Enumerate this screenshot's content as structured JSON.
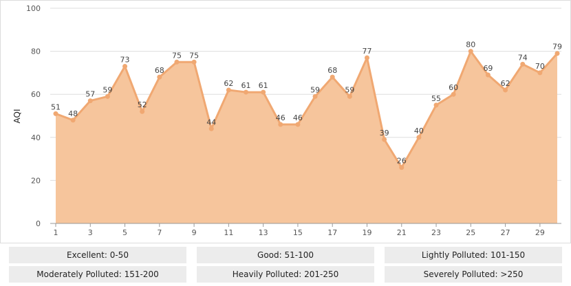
{
  "chart_data": {
    "type": "area",
    "ylabel": "AQI",
    "xlabel": "",
    "ylim": [
      0,
      100
    ],
    "yticks": [
      0,
      20,
      40,
      60,
      80,
      100
    ],
    "xticks": [
      1,
      3,
      5,
      7,
      9,
      11,
      13,
      15,
      17,
      19,
      21,
      23,
      25,
      27,
      29
    ],
    "x": [
      1,
      2,
      3,
      4,
      5,
      6,
      7,
      8,
      9,
      10,
      11,
      12,
      13,
      14,
      15,
      16,
      17,
      18,
      19,
      20,
      21,
      22,
      23,
      24,
      25,
      26,
      27,
      28,
      29,
      30
    ],
    "values": [
      51,
      48,
      57,
      59,
      73,
      52,
      68,
      75,
      75,
      44,
      62,
      61,
      61,
      46,
      46,
      59,
      68,
      59,
      77,
      39,
      26,
      40,
      55,
      60,
      80,
      69,
      62,
      74,
      70,
      79
    ],
    "grid": true,
    "colors": {
      "line": "#f0a872",
      "fill": "#f6c59c",
      "grid": "#dddddd"
    }
  },
  "legend": {
    "items": [
      "Excellent: 0-50",
      "Good: 51-100",
      "Lightly Polluted: 101-150",
      "Moderately Polluted: 151-200",
      "Heavily Polluted: 201-250",
      "Severely Polluted: >250"
    ]
  }
}
